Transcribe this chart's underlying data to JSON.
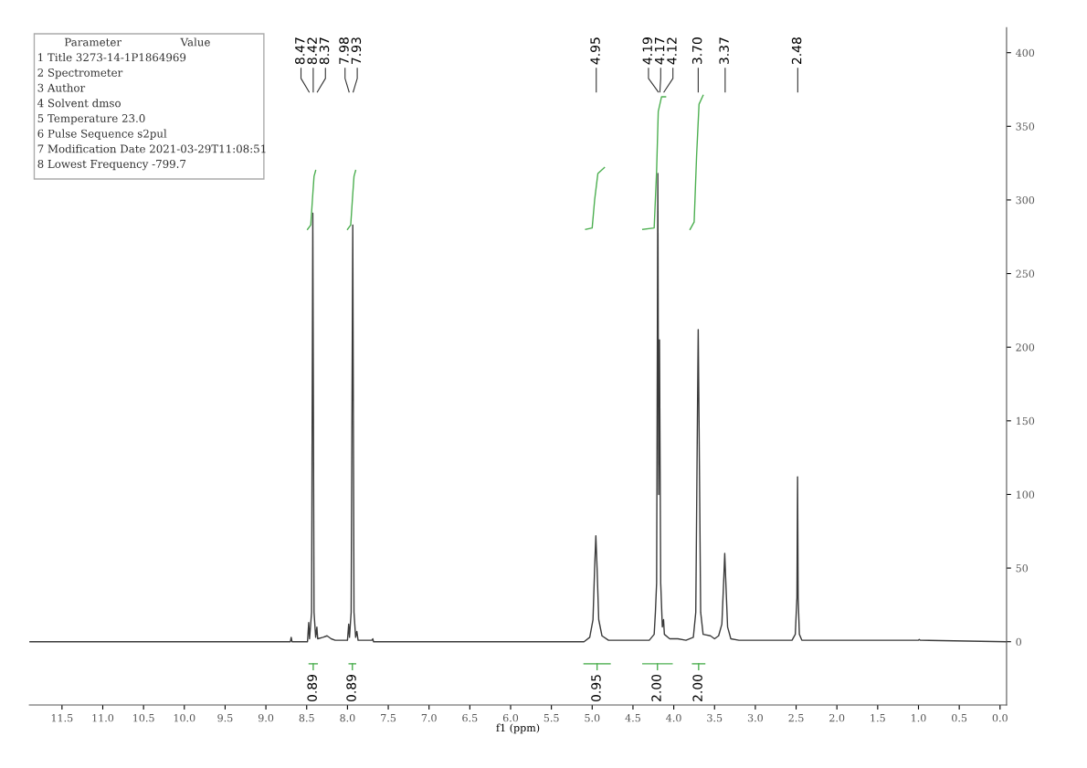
{
  "chart_data": {
    "type": "line",
    "xlabel": "f1 (ppm)",
    "xlim": [
      11.9,
      -0.08
    ],
    "ylim": [
      -43,
      417
    ],
    "xticks": [
      11.5,
      {
        "value": 11.0,
        "label": "11.0"
      },
      10.5,
      {
        "value": 10.0,
        "label": "10.0"
      },
      9.5,
      {
        "value": 9.0,
        "label": "9.0"
      },
      8.5,
      {
        "value": 8.0,
        "label": "8.0"
      },
      7.5,
      {
        "value": 7.0,
        "label": "7.0"
      },
      6.5,
      {
        "value": 6.0,
        "label": "6.0"
      },
      5.5,
      {
        "value": 5.0,
        "label": "5.0"
      },
      4.5,
      {
        "value": 4.0,
        "label": "4.0"
      },
      3.5,
      {
        "value": 3.0,
        "label": "3.0"
      },
      2.5,
      {
        "value": 2.0,
        "label": "2.0"
      },
      1.5,
      {
        "value": 1.0,
        "label": "1.0"
      },
      0.5,
      {
        "value": 0.0,
        "label": "0.0"
      }
    ],
    "yticks": [
      0,
      50,
      100,
      150,
      200,
      250,
      300,
      350,
      400
    ],
    "grid": false,
    "legend": false,
    "marker": "none",
    "line_style": "solid",
    "series": [
      {
        "type": "line",
        "color": "#3a3a3a",
        "x": [
          11.9,
          8.7,
          8.69,
          8.68,
          8.49,
          8.475,
          8.465,
          8.44,
          8.425,
          8.41,
          8.39,
          8.375,
          8.365,
          8.3,
          8.25,
          8.2,
          8.15,
          8.0,
          7.985,
          7.975,
          7.955,
          7.935,
          7.92,
          7.9,
          7.885,
          7.87,
          7.7,
          7.69,
          7.68,
          5.1,
          5.03,
          4.99,
          4.97,
          4.955,
          4.94,
          4.92,
          4.88,
          4.8,
          4.3,
          4.27,
          4.24,
          4.225,
          4.21,
          4.195,
          4.185,
          4.175,
          4.16,
          4.14,
          4.125,
          4.115,
          4.05,
          3.95,
          3.85,
          3.76,
          3.73,
          3.71,
          3.7,
          3.69,
          3.67,
          3.64,
          3.55,
          3.5,
          3.45,
          3.41,
          3.385,
          3.375,
          3.365,
          3.34,
          3.3,
          3.2,
          2.55,
          2.51,
          2.49,
          2.482,
          2.475,
          2.46,
          2.43,
          1.0,
          0.99,
          0.98,
          -0.08
        ],
        "values": [
          0,
          0,
          3,
          0,
          0,
          13,
          2,
          20,
          291,
          20,
          3,
          10,
          2,
          3,
          4,
          2,
          1,
          1,
          12,
          3,
          20,
          283,
          20,
          3,
          7,
          1,
          1,
          2,
          0,
          0,
          3,
          15,
          50,
          72,
          50,
          15,
          4,
          1,
          1,
          3,
          5,
          20,
          40,
          318,
          100,
          205,
          40,
          10,
          15,
          5,
          2,
          2,
          1,
          3,
          20,
          150,
          212,
          150,
          20,
          5,
          4,
          2,
          4,
          12,
          45,
          60,
          45,
          10,
          2,
          1,
          1,
          5,
          30,
          112,
          30,
          5,
          1,
          1,
          1.5,
          1,
          0
        ]
      },
      {
        "type": "line",
        "color": "#4caf50",
        "x": [
          8.49,
          8.45,
          8.43,
          8.41,
          8.39
        ],
        "values": [
          280,
          283,
          300,
          316,
          320
        ]
      },
      {
        "type": "line",
        "color": "#4caf50",
        "x": [
          8.0,
          7.96,
          7.94,
          7.92,
          7.9
        ],
        "values": [
          280,
          283,
          300,
          316,
          320
        ]
      },
      {
        "type": "line",
        "color": "#4caf50",
        "x": [
          5.08,
          5.0,
          4.97,
          4.93,
          4.85
        ],
        "values": [
          280,
          281,
          300,
          318,
          322
        ]
      },
      {
        "type": "line",
        "color": "#4caf50",
        "x": [
          4.38,
          4.24,
          4.21,
          4.19,
          4.15,
          4.1
        ],
        "values": [
          280,
          281,
          320,
          360,
          370,
          370
        ]
      },
      {
        "type": "line",
        "color": "#4caf50",
        "x": [
          3.8,
          3.75,
          3.72,
          3.69,
          3.64
        ],
        "values": [
          280,
          285,
          330,
          365,
          371
        ]
      },
      {
        "type": "line",
        "color": "#4caf50",
        "x": [
          8.47,
          8.37
        ],
        "values": [
          -15,
          -15
        ]
      },
      {
        "type": "line",
        "color": "#4caf50",
        "x": [
          7.98,
          7.9
        ],
        "values": [
          -15,
          -15
        ]
      },
      {
        "type": "line",
        "color": "#4caf50",
        "x": [
          5.1,
          4.78
        ],
        "values": [
          -15,
          -15
        ]
      },
      {
        "type": "line",
        "color": "#4caf50",
        "x": [
          4.38,
          4.02
        ],
        "values": [
          -15,
          -15
        ]
      },
      {
        "type": "line",
        "color": "#4caf50",
        "x": [
          3.77,
          3.62
        ],
        "values": [
          -15,
          -15
        ]
      }
    ],
    "annotations": [
      "Parameter",
      "Value",
      "1 Title 3273-14-1P1864969",
      "2 Spectrometer",
      "3 Author",
      "4 Solvent dmso",
      "5 Temperature 23.0",
      "6 Pulse Sequence s2pul",
      "7 Modification Date 2021-03-29T11:08:51",
      "8 Lowest Frequency -799.7",
      {
        "text": "8.47",
        "x": 8.47
      },
      {
        "text": "8.42",
        "x": 8.42
      },
      {
        "text": "8.37",
        "x": 8.37
      },
      {
        "text": "7.98",
        "x": 7.98
      },
      {
        "text": "7.93",
        "x": 7.93
      },
      {
        "text": "4.95",
        "x": 4.95
      },
      {
        "text": "4.19",
        "x": 4.19
      },
      {
        "text": "4.17",
        "x": 4.17
      },
      {
        "text": "4.12",
        "x": 4.12
      },
      {
        "text": "3.70",
        "x": 3.7
      },
      {
        "text": "3.37",
        "x": 3.37
      },
      {
        "text": "2.48",
        "x": 2.48
      },
      {
        "text": "0.89",
        "x": 8.42,
        "y": -15
      },
      {
        "text": "0.89",
        "x": 7.94,
        "y": -15
      },
      {
        "text": "0.95",
        "x": 4.94,
        "y": -15
      },
      {
        "text": "2.00",
        "x": 4.2,
        "y": -15
      },
      {
        "text": "2.00",
        "x": 3.695,
        "y": -15
      }
    ]
  }
}
